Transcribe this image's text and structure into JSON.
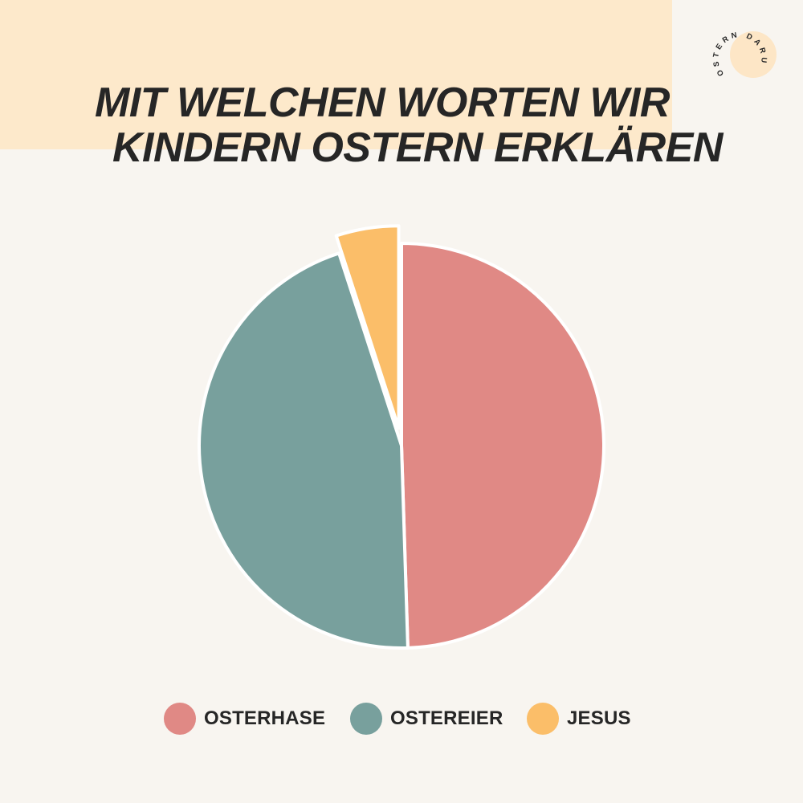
{
  "header": {
    "title_line1": "MIT WELCHEN WORTEN WIR",
    "title_line2": "KINDERN OSTERN ERKLÄREN"
  },
  "logo": {
    "text": "OSTERN DARUM",
    "circle_color": "#fde6c6"
  },
  "colors": {
    "background": "#f8f5f0",
    "header_block": "#fde9cb",
    "title_text": "#262626"
  },
  "chart_data": {
    "type": "pie",
    "title": "MIT WELCHEN WORTEN WIR KINDERN OSTERN ERKLÄREN",
    "slices": [
      {
        "label": "OSTERHASE",
        "value": 49.5,
        "color": "#e08985"
      },
      {
        "label": "OSTEREIER",
        "value": 45.5,
        "color": "#78a09d"
      },
      {
        "label": "JESUS",
        "value": 5.0,
        "color": "#fbbe69",
        "exploded": true
      }
    ],
    "legend_position": "bottom"
  }
}
